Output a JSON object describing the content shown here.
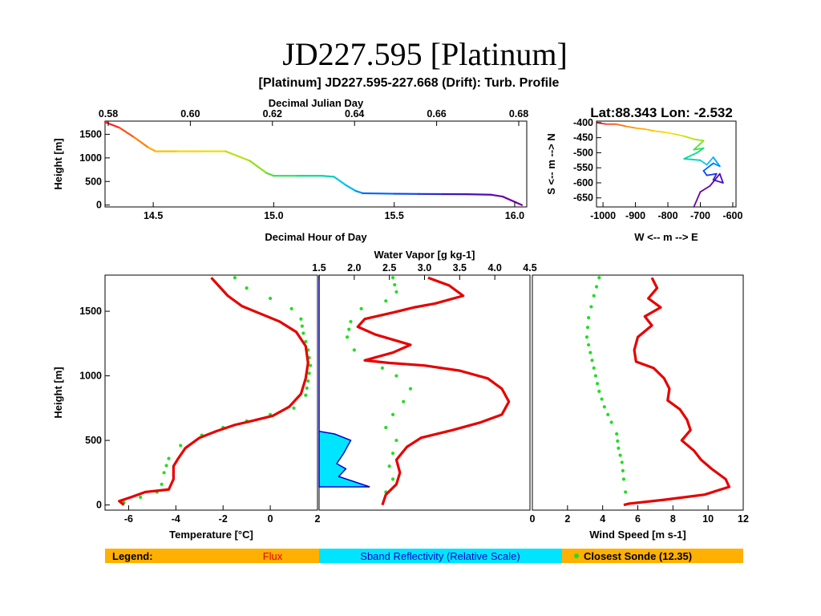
{
  "page": {
    "title": "JD227.595 [Platinum]",
    "figure_title": "[Platinum] JD227.595-227.668 (Drift): Turb. Profile"
  },
  "colors": {
    "flux": "#e60000",
    "sonde": "#22dd22",
    "reflectivity_fill": "#00e5ff",
    "reflectivity_line": "#0000cc",
    "legend_bg": "#ffb000",
    "track_palette": [
      "#ff2020",
      "#ffa500",
      "#ffe000",
      "#80e020",
      "#00e080",
      "#00c0ff",
      "#0050ff",
      "#4010c0",
      "#7000a0"
    ]
  },
  "legend": {
    "label": "Legend:",
    "flux": "Flux",
    "sband": "Sband Reflectivity (Relative Scale)",
    "sonde": "Closest Sonde (12.35)"
  },
  "chart_data": [
    {
      "id": "height_time",
      "type": "line",
      "xlabel": "Decimal Hour of Day",
      "xlabel_top": "Decimal Julian Day",
      "ylabel": "Height [m]",
      "xlim": [
        14.3,
        16.05
      ],
      "x_top_lim": [
        0.58,
        0.68
      ],
      "ylim": [
        -40,
        1780
      ],
      "xticks": [
        "14.5",
        "15.0",
        "15.5",
        "16.0"
      ],
      "xticks_top": [
        "0.58",
        "0.60",
        "0.62",
        "0.64",
        "0.66",
        "0.68"
      ],
      "yticks": [
        "0",
        "500",
        "1000",
        "1500"
      ],
      "colored_by": "time (rainbow)",
      "points": [
        [
          14.3,
          1760
        ],
        [
          14.36,
          1640
        ],
        [
          14.42,
          1440
        ],
        [
          14.48,
          1220
        ],
        [
          14.51,
          1140
        ],
        [
          14.6,
          1140
        ],
        [
          14.7,
          1140
        ],
        [
          14.8,
          1140
        ],
        [
          14.9,
          940
        ],
        [
          14.97,
          680
        ],
        [
          15.0,
          620
        ],
        [
          15.1,
          620
        ],
        [
          15.2,
          620
        ],
        [
          15.25,
          600
        ],
        [
          15.3,
          420
        ],
        [
          15.34,
          300
        ],
        [
          15.37,
          250
        ],
        [
          15.5,
          240
        ],
        [
          15.6,
          235
        ],
        [
          15.7,
          232
        ],
        [
          15.8,
          230
        ],
        [
          15.9,
          220
        ],
        [
          15.95,
          180
        ],
        [
          16.03,
          0
        ]
      ]
    },
    {
      "id": "track",
      "type": "line",
      "title": "Lat:88.343 Lon:  -2.532",
      "xlabel": "W <-- m --> E",
      "ylabel": "S <-- m --> N",
      "xlim": [
        -1020,
        -590
      ],
      "ylim": [
        -680,
        -395
      ],
      "xticks": [
        "-1000",
        "-900",
        "-800",
        "-700",
        "-600"
      ],
      "yticks": [
        "-400",
        "-450",
        "-500",
        "-550",
        "-600",
        "-650"
      ],
      "points": [
        [
          -1020,
          -400
        ],
        [
          -990,
          -405
        ],
        [
          -960,
          -405
        ],
        [
          -930,
          -412
        ],
        [
          -900,
          -418
        ],
        [
          -870,
          -422
        ],
        [
          -840,
          -428
        ],
        [
          -810,
          -432
        ],
        [
          -780,
          -438
        ],
        [
          -750,
          -445
        ],
        [
          -720,
          -455
        ],
        [
          -690,
          -460
        ],
        [
          -700,
          -470
        ],
        [
          -720,
          -490
        ],
        [
          -690,
          -485
        ],
        [
          -710,
          -500
        ],
        [
          -750,
          -520
        ],
        [
          -700,
          -525
        ],
        [
          -680,
          -540
        ],
        [
          -660,
          -515
        ],
        [
          -640,
          -545
        ],
        [
          -660,
          -535
        ],
        [
          -690,
          -560
        ],
        [
          -680,
          -575
        ],
        [
          -650,
          -570
        ],
        [
          -660,
          -590
        ],
        [
          -630,
          -600
        ],
        [
          -640,
          -570
        ],
        [
          -670,
          -610
        ],
        [
          -700,
          -630
        ],
        [
          -720,
          -680
        ]
      ]
    },
    {
      "id": "temperature",
      "type": "line",
      "xlabel": "Temperature [°C]",
      "ylabel": "Height [m]",
      "xlim": [
        -7,
        2
      ],
      "ylim": [
        -40,
        1780
      ],
      "xticks": [
        "-6",
        "-4",
        "-2",
        "0",
        "2"
      ],
      "yticks": [
        "0",
        "500",
        "1000",
        "1500"
      ],
      "series": [
        {
          "name": "Flux",
          "points": [
            [
              -2.5,
              1760
            ],
            [
              -2.2,
              1700
            ],
            [
              -1.8,
              1620
            ],
            [
              -1.2,
              1540
            ],
            [
              -0.4,
              1480
            ],
            [
              0.4,
              1420
            ],
            [
              1.1,
              1340
            ],
            [
              1.5,
              1230
            ],
            [
              1.6,
              1100
            ],
            [
              1.5,
              980
            ],
            [
              1.3,
              860
            ],
            [
              0.8,
              760
            ],
            [
              0.1,
              690
            ],
            [
              -0.8,
              650
            ],
            [
              -1.5,
              620
            ],
            [
              -2.3,
              570
            ],
            [
              -3.0,
              520
            ],
            [
              -3.6,
              440
            ],
            [
              -3.9,
              360
            ],
            [
              -4.1,
              300
            ],
            [
              -4.1,
              200
            ],
            [
              -4.3,
              120
            ],
            [
              -5.3,
              100
            ],
            [
              -5.9,
              60
            ],
            [
              -6.4,
              30
            ],
            [
              -6.2,
              0
            ]
          ]
        },
        {
          "name": "Closest Sonde",
          "points": [
            [
              -1.5,
              1760
            ],
            [
              -1.0,
              1680
            ],
            [
              0.0,
              1600
            ],
            [
              0.9,
              1520
            ],
            [
              1.3,
              1440
            ],
            [
              1.4,
              1330
            ],
            [
              1.6,
              1200
            ],
            [
              1.7,
              1080
            ],
            [
              1.6,
              960
            ],
            [
              1.5,
              850
            ],
            [
              1.0,
              750
            ],
            [
              0.0,
              700
            ],
            [
              -1.0,
              650
            ],
            [
              -2.0,
              600
            ],
            [
              -2.9,
              540
            ],
            [
              -3.8,
              460
            ],
            [
              -4.3,
              360
            ],
            [
              -4.5,
              250
            ],
            [
              -4.6,
              160
            ],
            [
              -4.8,
              100
            ],
            [
              -5.5,
              60
            ],
            [
              -6.2,
              20
            ],
            [
              -6.0,
              0
            ]
          ]
        }
      ]
    },
    {
      "id": "water_vapor",
      "type": "line",
      "xlabel": "Water Vapor [g kg-1]",
      "xlim": [
        1.5,
        4.5
      ],
      "ylim": [
        -40,
        1780
      ],
      "xticks": [
        "1.5",
        "2.0",
        "2.5",
        "3.0",
        "3.5",
        "4.0",
        "4.5"
      ],
      "series": [
        {
          "name": "Flux",
          "points": [
            [
              3.05,
              1760
            ],
            [
              3.35,
              1700
            ],
            [
              3.55,
              1620
            ],
            [
              3.15,
              1560
            ],
            [
              2.85,
              1530
            ],
            [
              2.55,
              1490
            ],
            [
              2.15,
              1440
            ],
            [
              2.05,
              1380
            ],
            [
              2.3,
              1320
            ],
            [
              2.8,
              1240
            ],
            [
              2.55,
              1180
            ],
            [
              2.15,
              1120
            ],
            [
              2.5,
              1100
            ],
            [
              3.0,
              1080
            ],
            [
              3.5,
              1040
            ],
            [
              3.9,
              980
            ],
            [
              4.1,
              900
            ],
            [
              4.2,
              800
            ],
            [
              4.1,
              700
            ],
            [
              3.8,
              640
            ],
            [
              3.4,
              580
            ],
            [
              2.95,
              520
            ],
            [
              2.75,
              450
            ],
            [
              2.6,
              350
            ],
            [
              2.65,
              250
            ],
            [
              2.6,
              160
            ],
            [
              2.45,
              80
            ],
            [
              2.4,
              0
            ]
          ]
        },
        {
          "name": "Closest Sonde",
          "points": [
            [
              2.55,
              1760
            ],
            [
              2.6,
              1650
            ],
            [
              2.45,
              1580
            ],
            [
              2.1,
              1520
            ],
            [
              1.95,
              1420
            ],
            [
              1.9,
              1300
            ],
            [
              2.0,
              1200
            ],
            [
              2.2,
              1120
            ],
            [
              2.6,
              1000
            ],
            [
              2.8,
              900
            ],
            [
              2.7,
              800
            ],
            [
              2.55,
              700
            ],
            [
              2.45,
              600
            ],
            [
              2.6,
              500
            ],
            [
              2.55,
              400
            ],
            [
              2.5,
              300
            ],
            [
              2.55,
              200
            ],
            [
              2.45,
              100
            ],
            [
              2.3,
              0
            ]
          ]
        }
      ]
    },
    {
      "id": "sband",
      "type": "area",
      "label": "Sband Reflectivity (Relative Scale)",
      "xlim": [
        1.5,
        4.5
      ],
      "ylim": [
        -40,
        1780
      ],
      "points": [
        [
          1.5,
          1780
        ],
        [
          1.5,
          570
        ],
        [
          1.72,
          550
        ],
        [
          1.95,
          500
        ],
        [
          1.85,
          400
        ],
        [
          1.75,
          320
        ],
        [
          1.88,
          280
        ],
        [
          1.78,
          220
        ],
        [
          2.22,
          140
        ],
        [
          1.5,
          140
        ]
      ]
    },
    {
      "id": "wind_speed",
      "type": "line",
      "xlabel": "Wind Speed [m s-1]",
      "xlim": [
        0,
        12
      ],
      "ylim": [
        -40,
        1780
      ],
      "xticks": [
        "0",
        "2",
        "4",
        "6",
        "8",
        "10",
        "12"
      ],
      "series": [
        {
          "name": "Flux",
          "points": [
            [
              6.8,
              1760
            ],
            [
              7.1,
              1680
            ],
            [
              6.6,
              1600
            ],
            [
              7.3,
              1530
            ],
            [
              6.4,
              1460
            ],
            [
              6.8,
              1390
            ],
            [
              6.0,
              1300
            ],
            [
              5.8,
              1200
            ],
            [
              5.9,
              1110
            ],
            [
              6.9,
              1060
            ],
            [
              7.5,
              980
            ],
            [
              7.8,
              900
            ],
            [
              7.7,
              810
            ],
            [
              8.4,
              740
            ],
            [
              8.8,
              660
            ],
            [
              9.0,
              580
            ],
            [
              8.5,
              500
            ],
            [
              9.2,
              420
            ],
            [
              9.6,
              350
            ],
            [
              10.2,
              280
            ],
            [
              11.0,
              200
            ],
            [
              11.2,
              140
            ],
            [
              9.8,
              80
            ],
            [
              7.5,
              40
            ],
            [
              5.5,
              10
            ],
            [
              5.2,
              0
            ]
          ]
        },
        {
          "name": "Closest Sonde",
          "points": [
            [
              3.8,
              1760
            ],
            [
              3.5,
              1620
            ],
            [
              3.2,
              1450
            ],
            [
              3.1,
              1300
            ],
            [
              3.4,
              1120
            ],
            [
              3.6,
              1000
            ],
            [
              3.8,
              880
            ],
            [
              4.1,
              760
            ],
            [
              4.5,
              640
            ],
            [
              4.8,
              550
            ],
            [
              4.9,
              440
            ],
            [
              5.1,
              330
            ],
            [
              5.2,
              200
            ],
            [
              5.3,
              100
            ],
            [
              5.3,
              0
            ]
          ]
        }
      ]
    }
  ]
}
